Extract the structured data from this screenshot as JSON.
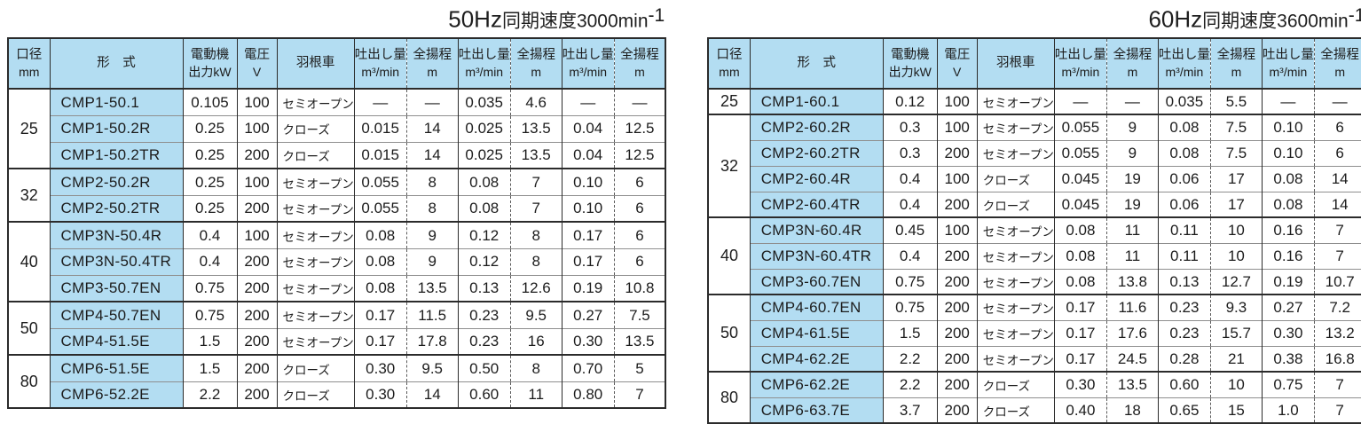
{
  "colors": {
    "header_bg": "#b3ddf2",
    "model_bg": "#b3ddf2",
    "border_dark": "#2b2b2b",
    "border_light": "#8f8f8f"
  },
  "headers": {
    "bore_l1": "口径",
    "bore_l2": "mm",
    "model": "形　式",
    "power_l1": "電動機",
    "power_l2": "出力kW",
    "volt_l1": "電圧",
    "volt_l2": "V",
    "impeller": "羽根車",
    "flow_l1": "吐出し量",
    "flow_l2": "m³/min",
    "head_l1": "全揚程",
    "head_l2": "m"
  },
  "tables": [
    {
      "title": {
        "hz": "50Hz",
        "rest": "同期速度3000min",
        "sup": "-1"
      },
      "groups": [
        {
          "size": "25",
          "rows": [
            {
              "model": "CMP1-50.1",
              "kw": "0.105",
              "volt": "100",
              "impeller": "セミオープン",
              "points": [
                [
                  "—",
                  "—"
                ],
                [
                  "0.035",
                  "4.6"
                ],
                [
                  "—",
                  "—"
                ]
              ]
            },
            {
              "model": "CMP1-50.2R",
              "kw": "0.25",
              "volt": "100",
              "impeller": "クローズ",
              "points": [
                [
                  "0.015",
                  "14"
                ],
                [
                  "0.025",
                  "13.5"
                ],
                [
                  "0.04",
                  "12.5"
                ]
              ]
            },
            {
              "model": "CMP1-50.2TR",
              "kw": "0.25",
              "volt": "200",
              "impeller": "クローズ",
              "points": [
                [
                  "0.015",
                  "14"
                ],
                [
                  "0.025",
                  "13.5"
                ],
                [
                  "0.04",
                  "12.5"
                ]
              ]
            }
          ]
        },
        {
          "size": "32",
          "rows": [
            {
              "model": "CMP2-50.2R",
              "kw": "0.25",
              "volt": "100",
              "impeller": "セミオープン",
              "points": [
                [
                  "0.055",
                  "8"
                ],
                [
                  "0.08",
                  "7"
                ],
                [
                  "0.10",
                  "6"
                ]
              ]
            },
            {
              "model": "CMP2-50.2TR",
              "kw": "0.25",
              "volt": "200",
              "impeller": "セミオープン",
              "points": [
                [
                  "0.055",
                  "8"
                ],
                [
                  "0.08",
                  "7"
                ],
                [
                  "0.10",
                  "6"
                ]
              ]
            }
          ]
        },
        {
          "size": "40",
          "rows": [
            {
              "model": "CMP3N-50.4R",
              "kw": "0.4",
              "volt": "100",
              "impeller": "セミオープン",
              "points": [
                [
                  "0.08",
                  "9"
                ],
                [
                  "0.12",
                  "8"
                ],
                [
                  "0.17",
                  "6"
                ]
              ]
            },
            {
              "model": "CMP3N-50.4TR",
              "kw": "0.4",
              "volt": "200",
              "impeller": "セミオープン",
              "points": [
                [
                  "0.08",
                  "9"
                ],
                [
                  "0.12",
                  "8"
                ],
                [
                  "0.17",
                  "6"
                ]
              ]
            },
            {
              "model": "CMP3-50.7EN",
              "kw": "0.75",
              "volt": "200",
              "impeller": "セミオープン",
              "points": [
                [
                  "0.08",
                  "13.5"
                ],
                [
                  "0.13",
                  "12.6"
                ],
                [
                  "0.19",
                  "10.8"
                ]
              ]
            }
          ]
        },
        {
          "size": "50",
          "rows": [
            {
              "model": "CMP4-50.7EN",
              "kw": "0.75",
              "volt": "200",
              "impeller": "セミオープン",
              "points": [
                [
                  "0.17",
                  "11.5"
                ],
                [
                  "0.23",
                  "9.5"
                ],
                [
                  "0.27",
                  "7.5"
                ]
              ]
            },
            {
              "model": "CMP4-51.5E",
              "kw": "1.5",
              "volt": "200",
              "impeller": "セミオープン",
              "points": [
                [
                  "0.17",
                  "17.8"
                ],
                [
                  "0.23",
                  "16"
                ],
                [
                  "0.30",
                  "13.5"
                ]
              ]
            }
          ]
        },
        {
          "size": "80",
          "rows": [
            {
              "model": "CMP6-51.5E",
              "kw": "1.5",
              "volt": "200",
              "impeller": "クローズ",
              "points": [
                [
                  "0.30",
                  "9.5"
                ],
                [
                  "0.50",
                  "8"
                ],
                [
                  "0.70",
                  "5"
                ]
              ]
            },
            {
              "model": "CMP6-52.2E",
              "kw": "2.2",
              "volt": "200",
              "impeller": "クローズ",
              "points": [
                [
                  "0.30",
                  "14"
                ],
                [
                  "0.60",
                  "11"
                ],
                [
                  "0.80",
                  "7"
                ]
              ]
            }
          ]
        }
      ]
    },
    {
      "title": {
        "hz": "60Hz",
        "rest": "同期速度3600min",
        "sup": "-1"
      },
      "groups": [
        {
          "size": "25",
          "rows": [
            {
              "model": "CMP1-60.1",
              "kw": "0.12",
              "volt": "100",
              "impeller": "セミオープン",
              "points": [
                [
                  "—",
                  "—"
                ],
                [
                  "0.035",
                  "5.5"
                ],
                [
                  "—",
                  "—"
                ]
              ]
            }
          ]
        },
        {
          "size": "32",
          "rows": [
            {
              "model": "CMP2-60.2R",
              "kw": "0.3",
              "volt": "100",
              "impeller": "セミオープン",
              "points": [
                [
                  "0.055",
                  "9"
                ],
                [
                  "0.08",
                  "7.5"
                ],
                [
                  "0.10",
                  "6"
                ]
              ]
            },
            {
              "model": "CMP2-60.2TR",
              "kw": "0.3",
              "volt": "200",
              "impeller": "セミオープン",
              "points": [
                [
                  "0.055",
                  "9"
                ],
                [
                  "0.08",
                  "7.5"
                ],
                [
                  "0.10",
                  "6"
                ]
              ]
            },
            {
              "model": "CMP2-60.4R",
              "kw": "0.4",
              "volt": "100",
              "impeller": "クローズ",
              "points": [
                [
                  "0.045",
                  "19"
                ],
                [
                  "0.06",
                  "17"
                ],
                [
                  "0.08",
                  "14"
                ]
              ]
            },
            {
              "model": "CMP2-60.4TR",
              "kw": "0.4",
              "volt": "200",
              "impeller": "クローズ",
              "points": [
                [
                  "0.045",
                  "19"
                ],
                [
                  "0.06",
                  "17"
                ],
                [
                  "0.08",
                  "14"
                ]
              ]
            }
          ]
        },
        {
          "size": "40",
          "rows": [
            {
              "model": "CMP3N-60.4R",
              "kw": "0.45",
              "volt": "100",
              "impeller": "セミオープン",
              "points": [
                [
                  "0.08",
                  "11"
                ],
                [
                  "0.11",
                  "10"
                ],
                [
                  "0.16",
                  "7"
                ]
              ]
            },
            {
              "model": "CMP3N-60.4TR",
              "kw": "0.4",
              "volt": "200",
              "impeller": "セミオープン",
              "points": [
                [
                  "0.08",
                  "11"
                ],
                [
                  "0.11",
                  "10"
                ],
                [
                  "0.16",
                  "7"
                ]
              ]
            },
            {
              "model": "CMP3-60.7EN",
              "kw": "0.75",
              "volt": "200",
              "impeller": "セミオープン",
              "points": [
                [
                  "0.08",
                  "13.8"
                ],
                [
                  "0.13",
                  "12.7"
                ],
                [
                  "0.19",
                  "10.7"
                ]
              ]
            }
          ]
        },
        {
          "size": "50",
          "rows": [
            {
              "model": "CMP4-60.7EN",
              "kw": "0.75",
              "volt": "200",
              "impeller": "セミオープン",
              "points": [
                [
                  "0.17",
                  "11.6"
                ],
                [
                  "0.23",
                  "9.3"
                ],
                [
                  "0.27",
                  "7.2"
                ]
              ]
            },
            {
              "model": "CMP4-61.5E",
              "kw": "1.5",
              "volt": "200",
              "impeller": "セミオープン",
              "points": [
                [
                  "0.17",
                  "17.6"
                ],
                [
                  "0.23",
                  "15.7"
                ],
                [
                  "0.30",
                  "13.2"
                ]
              ]
            },
            {
              "model": "CMP4-62.2E",
              "kw": "2.2",
              "volt": "200",
              "impeller": "セミオープン",
              "points": [
                [
                  "0.17",
                  "24.5"
                ],
                [
                  "0.28",
                  "21"
                ],
                [
                  "0.38",
                  "16.8"
                ]
              ]
            }
          ]
        },
        {
          "size": "80",
          "rows": [
            {
              "model": "CMP6-62.2E",
              "kw": "2.2",
              "volt": "200",
              "impeller": "クローズ",
              "points": [
                [
                  "0.30",
                  "13.5"
                ],
                [
                  "0.60",
                  "10"
                ],
                [
                  "0.75",
                  "7"
                ]
              ]
            },
            {
              "model": "CMP6-63.7E",
              "kw": "3.7",
              "volt": "200",
              "impeller": "クローズ",
              "points": [
                [
                  "0.40",
                  "18"
                ],
                [
                  "0.65",
                  "15"
                ],
                [
                  "1.0",
                  "7"
                ]
              ]
            }
          ]
        }
      ]
    }
  ]
}
